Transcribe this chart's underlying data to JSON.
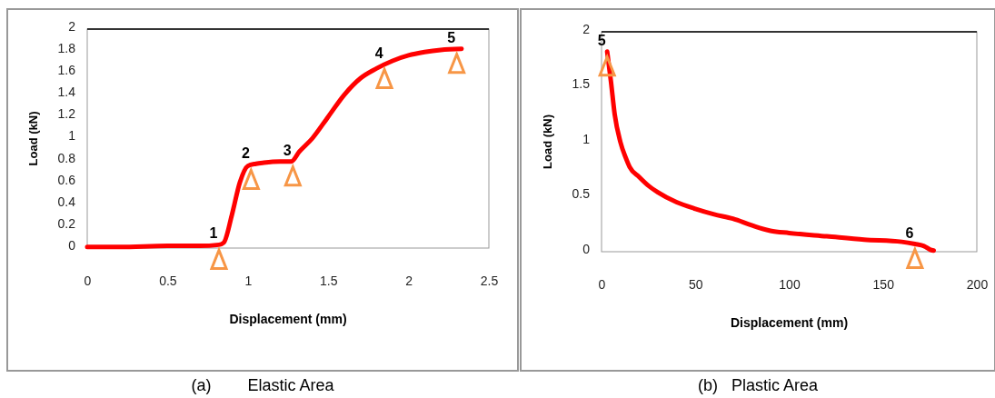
{
  "chart_data": [
    {
      "type": "line",
      "xlabel": "Displacement (mm)",
      "ylabel": "Load (kN)",
      "xlim": [
        0,
        2.5
      ],
      "xticks": [
        0,
        0.5,
        1,
        1.5,
        2,
        2.5
      ],
      "ylim": [
        0,
        2
      ],
      "yticks": [
        0,
        0.2,
        0.4,
        0.6,
        0.8,
        1,
        1.2,
        1.4,
        1.6,
        1.8,
        2
      ],
      "grid": false,
      "marker": "none",
      "line_style": "solid",
      "series": [
        {
          "color": "#ff0000",
          "x": [
            0,
            0.2,
            0.5,
            0.7,
            0.82,
            0.85,
            0.9,
            0.95,
            1.0,
            1.05,
            1.1,
            1.2,
            1.27,
            1.32,
            1.4,
            1.5,
            1.6,
            1.7,
            1.8,
            1.9,
            2.0,
            2.1,
            2.2,
            2.33
          ],
          "values": [
            0.01,
            0.01,
            0.02,
            0.02,
            0.03,
            0.05,
            0.3,
            0.6,
            0.75,
            0.77,
            0.78,
            0.79,
            0.79,
            0.88,
            1.0,
            1.2,
            1.4,
            1.55,
            1.64,
            1.71,
            1.76,
            1.79,
            1.81,
            1.82
          ]
        }
      ],
      "annotations": [
        {
          "text": "1",
          "x": 0.82,
          "y": 0.03
        },
        {
          "text": "2",
          "x": 1.02,
          "y": 0.76
        },
        {
          "text": "3",
          "x": 1.28,
          "y": 0.79
        },
        {
          "text": "4",
          "x": 1.85,
          "y": 1.68
        },
        {
          "text": "5",
          "x": 2.3,
          "y": 1.82
        },
        "(a)        Elastic Area"
      ]
    },
    {
      "type": "line",
      "xlabel": "Displacement (mm)",
      "ylabel": "Load (kN)",
      "xlim": [
        0,
        200
      ],
      "xticks": [
        0,
        50,
        100,
        150,
        200
      ],
      "ylim": [
        0,
        2
      ],
      "yticks": [
        0,
        0.5,
        1,
        1.5,
        2
      ],
      "grid": false,
      "marker": "none",
      "line_style": "solid",
      "series": [
        {
          "color": "#ff0000",
          "x": [
            3,
            5,
            7,
            10,
            13,
            15,
            20,
            25,
            30,
            40,
            50,
            60,
            70,
            80,
            90,
            100,
            120,
            140,
            160,
            167,
            172,
            175,
            177
          ],
          "values": [
            1.82,
            1.55,
            1.25,
            1.0,
            0.85,
            0.77,
            0.68,
            0.6,
            0.54,
            0.45,
            0.39,
            0.34,
            0.3,
            0.24,
            0.19,
            0.17,
            0.14,
            0.11,
            0.09,
            0.07,
            0.05,
            0.02,
            0.01
          ]
        }
      ],
      "annotations": [
        {
          "text": "5",
          "x": 3,
          "y": 1.82
        },
        {
          "text": "6",
          "x": 167,
          "y": 0.07
        },
        "(b)   Plastic Area"
      ]
    }
  ]
}
